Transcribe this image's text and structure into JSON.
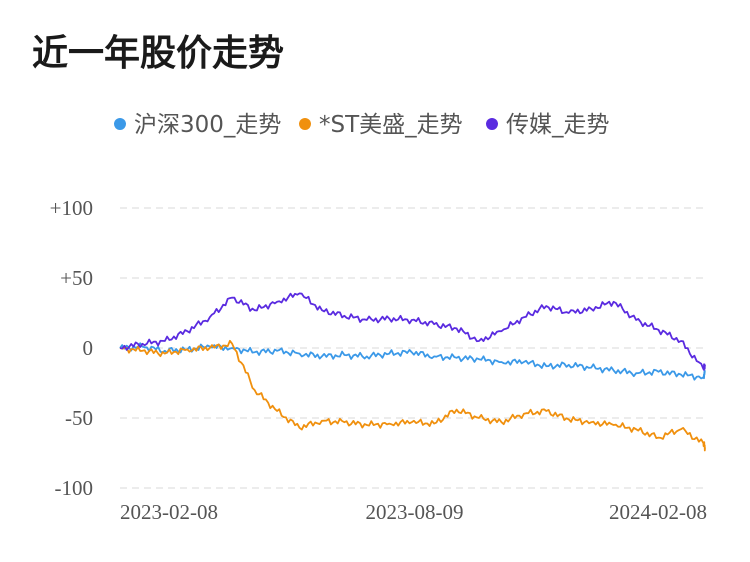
{
  "title": "近一年股价走势",
  "chart_data": {
    "type": "line",
    "title": "近一年股价走势",
    "xlabel": "",
    "ylabel": "",
    "ylim": [
      -100,
      100
    ],
    "y_ticks": [
      "+100",
      "+50",
      "0",
      "-50",
      "-100"
    ],
    "y_tick_values": [
      100,
      50,
      0,
      -50,
      -100
    ],
    "x_ticks": [
      "2023-02-08",
      "2023-08-09",
      "2024-02-08"
    ],
    "x_range": [
      "2023-02-08",
      "2024-02-08"
    ],
    "grid": true,
    "legend": "top",
    "x": [
      "2023-02-08",
      "2023-02-22",
      "2023-03-08",
      "2023-03-22",
      "2023-04-05",
      "2023-04-19",
      "2023-05-03",
      "2023-05-17",
      "2023-05-31",
      "2023-06-14",
      "2023-06-28",
      "2023-07-12",
      "2023-07-26",
      "2023-08-09",
      "2023-08-23",
      "2023-09-06",
      "2023-09-20",
      "2023-10-04",
      "2023-10-18",
      "2023-11-01",
      "2023-11-15",
      "2023-11-29",
      "2023-12-13",
      "2023-12-27",
      "2024-01-10",
      "2024-01-24",
      "2024-02-07",
      "2024-02-08"
    ],
    "series": [
      {
        "name": "沪深300_走势",
        "color": "#3b99e8",
        "values": [
          0,
          1,
          -2,
          -1,
          1,
          0,
          -3,
          -2,
          -4,
          -6,
          -5,
          -6,
          -4,
          -3,
          -6,
          -7,
          -8,
          -10,
          -10,
          -13,
          -12,
          -14,
          -16,
          -18,
          -17,
          -19,
          -21,
          -17
        ]
      },
      {
        "name": "*ST美盛_走势",
        "color": "#f0900e",
        "values": [
          0,
          -2,
          -4,
          -1,
          0,
          3,
          -30,
          -45,
          -57,
          -52,
          -53,
          -55,
          -54,
          -53,
          -54,
          -44,
          -50,
          -53,
          -47,
          -45,
          -51,
          -53,
          -55,
          -58,
          -64,
          -58,
          -68,
          -71
        ]
      },
      {
        "name": "传媒_走势",
        "color": "#5a2be0",
        "values": [
          0,
          3,
          5,
          12,
          22,
          36,
          27,
          33,
          39,
          27,
          23,
          20,
          21,
          20,
          17,
          14,
          5,
          12,
          22,
          30,
          25,
          28,
          33,
          20,
          13,
          5,
          -15,
          -12
        ]
      }
    ]
  }
}
